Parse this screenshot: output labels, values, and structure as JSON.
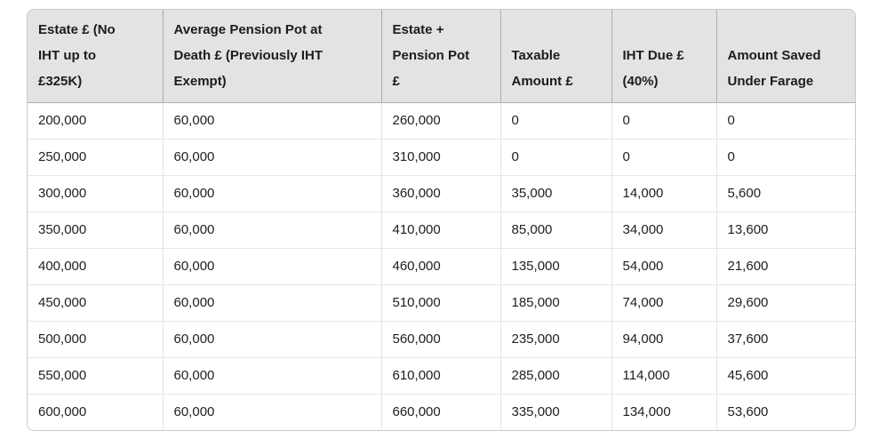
{
  "table": {
    "columns": [
      "Estate £ (No\nIHT up to\n£325K)",
      "Average Pension Pot at\nDeath £ (Previously IHT\nExempt)",
      "Estate +\nPension Pot\n£",
      "Taxable\nAmount £",
      "IHT Due £\n(40%)",
      "Amount Saved\nUnder Farage"
    ],
    "rows": [
      [
        "200,000",
        "60,000",
        "260,000",
        "0",
        "0",
        "0"
      ],
      [
        "250,000",
        "60,000",
        "310,000",
        "0",
        "0",
        "0"
      ],
      [
        "300,000",
        "60,000",
        "360,000",
        "35,000",
        "14,000",
        "5,600"
      ],
      [
        "350,000",
        "60,000",
        "410,000",
        "85,000",
        "34,000",
        "13,600"
      ],
      [
        "400,000",
        "60,000",
        "460,000",
        "135,000",
        "54,000",
        "21,600"
      ],
      [
        "450,000",
        "60,000",
        "510,000",
        "185,000",
        "74,000",
        "29,600"
      ],
      [
        "500,000",
        "60,000",
        "560,000",
        "235,000",
        "94,000",
        "37,600"
      ],
      [
        "550,000",
        "60,000",
        "610,000",
        "285,000",
        "114,000",
        "45,600"
      ],
      [
        "600,000",
        "60,000",
        "660,000",
        "335,000",
        "134,000",
        "53,600"
      ]
    ],
    "colors": {
      "header_bg": "#e3e3e3",
      "header_border": "#aeaeae",
      "body_bg": "#ffffff",
      "body_border": "#e5e5e5",
      "outer_border": "#c9c9c9",
      "text": "#202020"
    }
  }
}
